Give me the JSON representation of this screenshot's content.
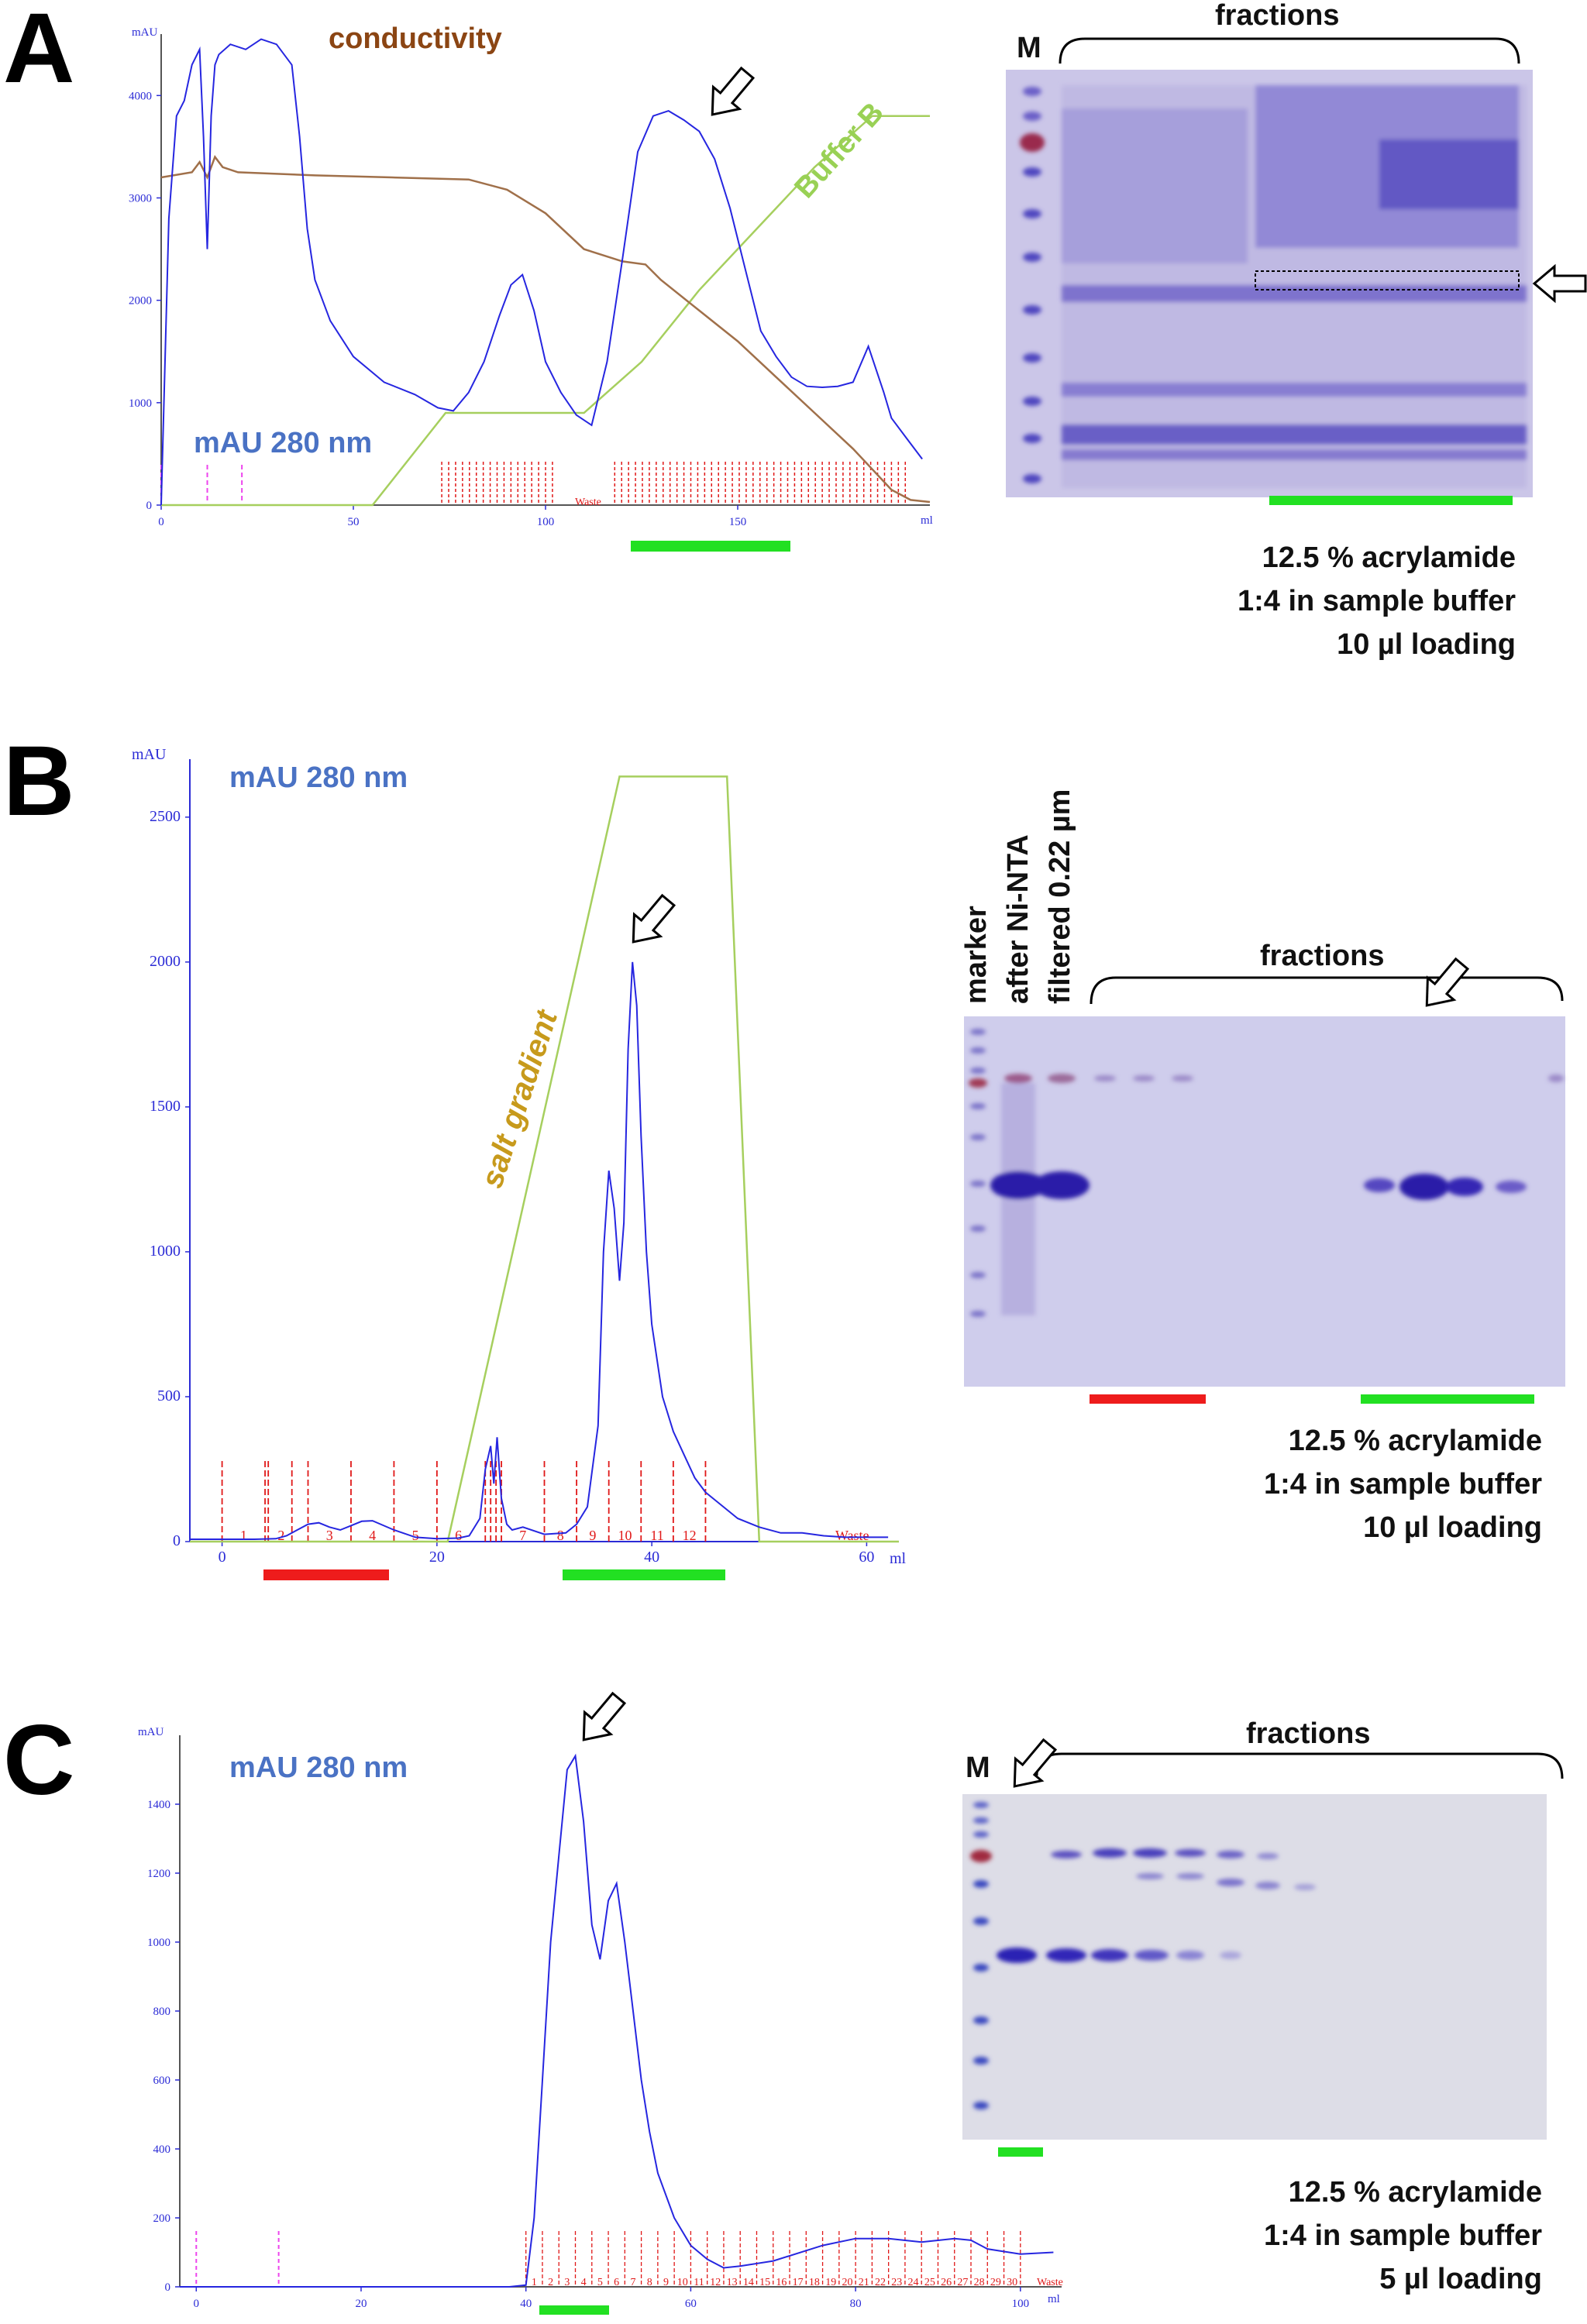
{
  "chart_data": [
    {
      "panel": "A",
      "type": "line",
      "trace_label": "mAU 280 nm",
      "y_unit": "mAU",
      "x_unit": "ml",
      "ylim": [
        0,
        4600
      ],
      "xlim": [
        0,
        200
      ],
      "yticks": [
        0,
        1000,
        2000,
        3000,
        4000
      ],
      "xticks": [
        0,
        50,
        100,
        150
      ],
      "waste_label": "Waste",
      "series": [
        {
          "name": "mAU 280 nm",
          "x": [
            0,
            2,
            4,
            6,
            8,
            10,
            11,
            12,
            13,
            14,
            15,
            18,
            22,
            26,
            30,
            34,
            36,
            38,
            40,
            44,
            50,
            58,
            66,
            72,
            76,
            80,
            84,
            88,
            91,
            94,
            97,
            100,
            104,
            108,
            112,
            116,
            120,
            124,
            128,
            132,
            136,
            140,
            144,
            148,
            152,
            156,
            160,
            164,
            168,
            172,
            176,
            180,
            184,
            188,
            190,
            194,
            198
          ],
          "y": [
            0,
            2800,
            3800,
            3950,
            4300,
            4450,
            3600,
            2500,
            3800,
            4300,
            4400,
            4500,
            4450,
            4550,
            4500,
            4300,
            3600,
            2700,
            2200,
            1800,
            1450,
            1200,
            1080,
            950,
            920,
            1100,
            1400,
            1850,
            2150,
            2250,
            1900,
            1400,
            1100,
            880,
            780,
            1400,
            2400,
            3450,
            3800,
            3850,
            3760,
            3650,
            3380,
            2900,
            2300,
            1700,
            1450,
            1250,
            1160,
            1150,
            1160,
            1200,
            1550,
            1100,
            850,
            650,
            450
          ]
        },
        {
          "name": "conductivity",
          "x": [
            0,
            8,
            10,
            12,
            14,
            16,
            20,
            40,
            60,
            80,
            90,
            100,
            110,
            120,
            126,
            130,
            140,
            150,
            160,
            170,
            180,
            185,
            190,
            195,
            200
          ],
          "y": [
            3200,
            3250,
            3350,
            3200,
            3400,
            3300,
            3250,
            3220,
            3200,
            3180,
            3080,
            2850,
            2500,
            2380,
            2350,
            2200,
            1900,
            1600,
            1250,
            900,
            550,
            350,
            150,
            50,
            30
          ]
        },
        {
          "name": "Buffer B",
          "x": [
            0,
            55,
            74,
            100,
            110,
            125,
            140,
            155,
            170,
            185,
            200
          ],
          "y": [
            0,
            0,
            900,
            900,
            900,
            1400,
            2100,
            2700,
            3300,
            3800,
            3800
          ]
        }
      ]
    },
    {
      "panel": "B",
      "type": "line",
      "trace_label": "mAU 280 nm",
      "y_unit": "mAU",
      "x_unit": "ml",
      "ylim": [
        0,
        2700
      ],
      "xlim": [
        -3,
        63
      ],
      "yticks": [
        0,
        500,
        1000,
        1500,
        2000,
        2500
      ],
      "xticks": [
        0,
        20,
        40,
        60
      ],
      "fractions": [
        "1",
        "2",
        "3",
        "4",
        "5",
        "6",
        "7",
        "8",
        "9",
        "10",
        "11",
        "12"
      ],
      "waste_label": "Waste",
      "series": [
        {
          "name": "mAU 280 nm",
          "x": [
            -3,
            0,
            3,
            5,
            6,
            7,
            8,
            9,
            10,
            11,
            12,
            13,
            14,
            16,
            18,
            20,
            22,
            23,
            24,
            24.5,
            25,
            25.3,
            25.6,
            26,
            26.5,
            27,
            28,
            30,
            32,
            33,
            34,
            35,
            35.5,
            36,
            36.5,
            37,
            37.4,
            37.8,
            38.2,
            38.6,
            39,
            39.5,
            40,
            41,
            42,
            43,
            44,
            45,
            46,
            48,
            50,
            52,
            54,
            56,
            58,
            60,
            62
          ],
          "y": [
            8,
            8,
            8,
            10,
            20,
            40,
            60,
            65,
            50,
            40,
            55,
            70,
            72,
            40,
            15,
            10,
            12,
            20,
            80,
            250,
            330,
            200,
            360,
            150,
            60,
            40,
            50,
            25,
            30,
            60,
            120,
            400,
            1000,
            1280,
            1150,
            900,
            1100,
            1700,
            2000,
            1850,
            1400,
            1000,
            750,
            500,
            380,
            300,
            220,
            170,
            140,
            80,
            50,
            30,
            30,
            20,
            15,
            15,
            15
          ]
        },
        {
          "name": "salt gradient",
          "x": [
            -3,
            21,
            37,
            47,
            47,
            50,
            63
          ],
          "y": [
            0,
            0,
            2640,
            2640,
            2640,
            0,
            0
          ]
        }
      ]
    },
    {
      "panel": "C",
      "type": "line",
      "trace_label": "mAU 280 nm",
      "y_unit": "mAU",
      "x_unit": "ml",
      "ylim": [
        0,
        1600
      ],
      "xlim": [
        -2,
        105
      ],
      "yticks": [
        0,
        200,
        400,
        600,
        800,
        1000,
        1200,
        1400
      ],
      "xticks": [
        0,
        20,
        40,
        60,
        80,
        100
      ],
      "fractions": [
        "1",
        "2",
        "3",
        "4",
        "5",
        "6",
        "7",
        "8",
        "9",
        "10",
        "11",
        "12",
        "13",
        "14",
        "15",
        "16",
        "17",
        "18",
        "19",
        "20",
        "21",
        "22",
        "23",
        "24",
        "25",
        "26",
        "27",
        "28",
        "29",
        "30"
      ],
      "waste_label": "Waste",
      "series": [
        {
          "name": "mAU 280 nm",
          "x": [
            -2,
            0,
            10,
            20,
            30,
            38,
            40,
            41,
            42,
            43,
            44,
            45,
            46,
            47,
            48,
            49,
            50,
            51,
            52,
            53,
            54,
            55,
            56,
            58,
            60,
            62,
            64,
            66,
            70,
            76,
            80,
            84,
            88,
            92,
            94,
            96,
            100,
            104
          ],
          "y": [
            0,
            0,
            0,
            0,
            0,
            0,
            5,
            200,
            600,
            1000,
            1250,
            1500,
            1540,
            1350,
            1050,
            950,
            1120,
            1170,
            1000,
            800,
            600,
            450,
            330,
            200,
            120,
            80,
            55,
            60,
            75,
            120,
            140,
            140,
            130,
            140,
            135,
            110,
            95,
            100
          ]
        }
      ]
    }
  ],
  "panels": {
    "A": {
      "letter": "A",
      "trace_label": "mAU 280 nm",
      "conductivity_label": "conductivity",
      "buffer_label": "Buffer B",
      "y_unit_tag": "mAU",
      "x_unit_tag": "ml",
      "gel_marker": "M",
      "gel_fractions": "fractions",
      "note_1": "12.5 % acrylamide",
      "note_2": "1:4 in sample buffer",
      "note_3": "10 µl loading"
    },
    "B": {
      "letter": "B",
      "trace_label": "mAU 280 nm",
      "gradient_label": "salt gradient",
      "y_unit_tag": "mAU",
      "x_unit_tag": "ml",
      "lane_1": "marker",
      "lane_2": "after Ni-NTA",
      "lane_3": "filtered 0.22 µm",
      "gel_fractions": "fractions",
      "note_1": "12.5 % acrylamide",
      "note_2": "1:4 in sample buffer",
      "note_3": "10 µl loading"
    },
    "C": {
      "letter": "C",
      "trace_label": "mAU 280 nm",
      "y_unit_tag": "mAU",
      "x_unit_tag": "ml",
      "gel_marker": "M",
      "gel_fractions": "fractions",
      "note_1": "12.5 % acrylamide",
      "note_2": "1:4 in sample buffer",
      "note_3": "5 µl loading"
    }
  },
  "colors": {
    "trace": "#2626e0",
    "conductivity": "#a0704a",
    "buffer_b": "#a6cf5e",
    "fraction_marks": "#e01818",
    "green_bar": "#22e022",
    "red_bar": "#ee1c1c",
    "gel_bg": "#c9c6e6",
    "band": "#3c2fb8"
  }
}
